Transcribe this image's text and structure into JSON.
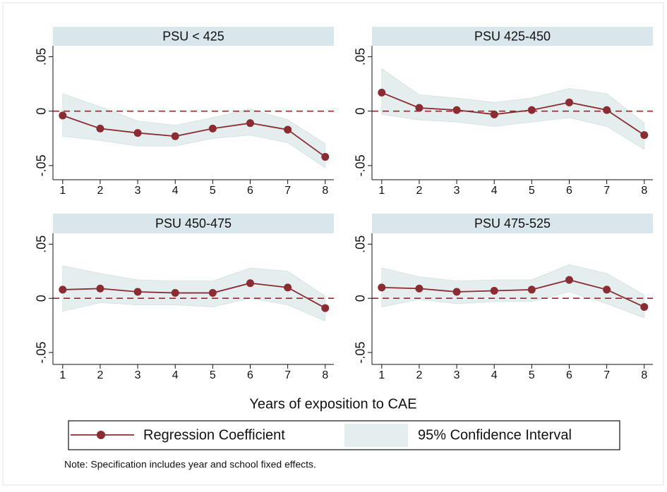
{
  "chart_data": [
    {
      "type": "line",
      "title": "PSU < 425",
      "x": [
        1,
        2,
        3,
        4,
        5,
        6,
        7,
        8
      ],
      "values": [
        -0.004,
        -0.016,
        -0.02,
        -0.023,
        -0.016,
        -0.011,
        -0.017,
        -0.042
      ],
      "ci_upper": [
        0.016,
        0.004,
        -0.009,
        -0.013,
        -0.006,
        0.002,
        -0.008,
        -0.03
      ],
      "ci_lower": [
        -0.023,
        -0.027,
        -0.032,
        -0.032,
        -0.025,
        -0.022,
        -0.029,
        -0.052
      ],
      "xlim": [
        0.74,
        8.23
      ],
      "xticks": [
        1,
        2,
        3,
        4,
        5,
        6,
        7,
        8
      ],
      "ylim": [
        -0.063,
        0.06
      ],
      "yticks": [
        {
          "value": -0.05,
          "label": "-.05"
        },
        0,
        {
          "value": 0.05,
          "label": ".05"
        }
      ],
      "reference_line": 0
    },
    {
      "type": "line",
      "title": "PSU 425-450",
      "x": [
        1,
        2,
        3,
        4,
        5,
        6,
        7,
        8
      ],
      "values": [
        0.017,
        0.003,
        0.001,
        -0.003,
        0.001,
        0.008,
        0.001,
        -0.022
      ],
      "ci_upper": [
        0.039,
        0.015,
        0.012,
        0.008,
        0.012,
        0.021,
        0.016,
        -0.011
      ],
      "ci_lower": [
        -0.003,
        -0.008,
        -0.01,
        -0.014,
        -0.01,
        -0.006,
        -0.014,
        -0.035
      ],
      "xlim": [
        0.74,
        8.23
      ],
      "xticks": [
        1,
        2,
        3,
        4,
        5,
        6,
        7,
        8
      ],
      "ylim": [
        -0.063,
        0.06
      ],
      "yticks": [
        {
          "value": -0.05,
          "label": "-.05"
        },
        0,
        {
          "value": 0.05,
          "label": ".05"
        }
      ],
      "reference_line": 0
    },
    {
      "type": "line",
      "title": "PSU 450-475",
      "x": [
        1,
        2,
        3,
        4,
        5,
        6,
        7,
        8
      ],
      "values": [
        0.008,
        0.009,
        0.006,
        0.005,
        0.005,
        0.014,
        0.01,
        -0.009
      ],
      "ci_upper": [
        0.03,
        0.023,
        0.017,
        0.016,
        0.016,
        0.028,
        0.025,
        0.002
      ],
      "ci_lower": [
        -0.012,
        -0.004,
        -0.006,
        -0.006,
        -0.008,
        0.0,
        -0.006,
        -0.021
      ],
      "xlim": [
        0.74,
        8.23
      ],
      "xticks": [
        1,
        2,
        3,
        4,
        5,
        6,
        7,
        8
      ],
      "ylim": [
        -0.061,
        0.06
      ],
      "yticks": [
        {
          "value": -0.05,
          "label": "-.05"
        },
        0,
        {
          "value": 0.05,
          "label": ".05"
        }
      ],
      "reference_line": 0
    },
    {
      "type": "line",
      "title": "PSU 475-525",
      "x": [
        1,
        2,
        3,
        4,
        5,
        6,
        7,
        8
      ],
      "values": [
        0.01,
        0.009,
        0.006,
        0.007,
        0.008,
        0.017,
        0.008,
        -0.008
      ],
      "ci_upper": [
        0.028,
        0.02,
        0.016,
        0.017,
        0.017,
        0.031,
        0.023,
        0.003
      ],
      "ci_lower": [
        -0.008,
        -0.001,
        -0.005,
        -0.003,
        -0.003,
        0.006,
        -0.005,
        -0.018
      ],
      "xlim": [
        0.74,
        8.23
      ],
      "xticks": [
        1,
        2,
        3,
        4,
        5,
        6,
        7,
        8
      ],
      "ylim": [
        -0.061,
        0.06
      ],
      "yticks": [
        {
          "value": -0.05,
          "label": "-.05"
        },
        0,
        {
          "value": 0.05,
          "label": ".05"
        }
      ],
      "reference_line": 0
    }
  ],
  "x_label": "Years of exposition to CAE",
  "series": [
    {
      "name": "Regression Coefficient",
      "color": "#8b2b32"
    },
    {
      "name": "95% Confidence Interval",
      "color": "#e5eeee"
    }
  ],
  "reference_color": "#c0142c",
  "note": "Note: Specification includes year and school fixed effects."
}
